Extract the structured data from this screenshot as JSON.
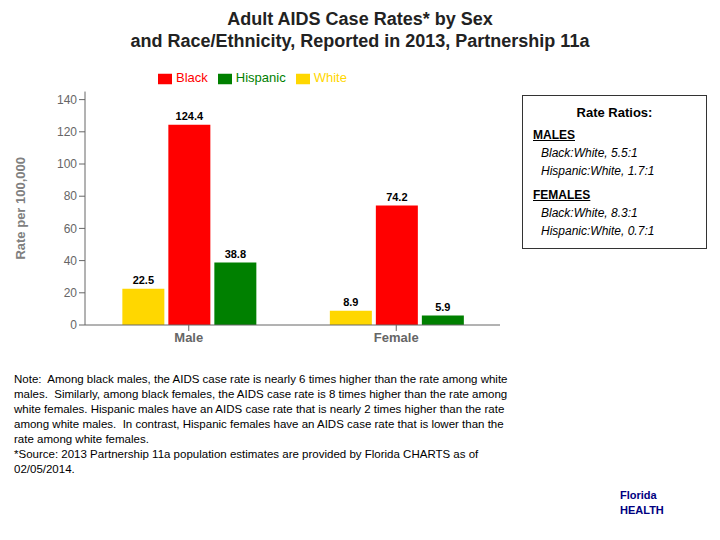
{
  "chart_data": {
    "type": "bar",
    "title": "Adult AIDS Case Rates* by Sex\nand Race/Ethnicity, Reported in 2013, Partnership 11a",
    "ylabel": "Rate per 100,000",
    "categories": [
      "Male",
      "Female"
    ],
    "series": [
      {
        "name": "White",
        "color": "#FFD700",
        "values": [
          22.5,
          8.9
        ]
      },
      {
        "name": "Black",
        "color": "#FF0000",
        "values": [
          124.4,
          74.2
        ]
      },
      {
        "name": "Hispanic",
        "color": "#008000",
        "values": [
          38.8,
          5.9
        ]
      }
    ],
    "ylim": [
      0,
      145
    ],
    "yticks": [
      0,
      20,
      40,
      60,
      80,
      100,
      120,
      140
    ],
    "grid": false,
    "legend": "top",
    "data_labels": true,
    "annotations": [
      "Rate Ratios:",
      "MALES",
      "Black:White, 5.5:1",
      "Hispanic:White, 1.7:1",
      "FEMALES",
      "Black:White, 8.3:1",
      "Hispanic:White, 0.7:1",
      "Note:  Among black males, the AIDS case rate is nearly 6 times higher than the rate among white\nmales.  Similarly, among black females, the AIDS case rate is 8 times higher than the rate among\nwhite females. Hispanic males have an AIDS case rate that is nearly 2 times higher than the rate\namong white males.  In contrast, Hispanic females have an AIDS case rate that is lower than the\nrate among white females.\n*Source: 2013 Partnership 11a population estimates are provided by Florida CHARTS as of\n02/05/2014.",
      "Florida",
      "HEALTH"
    ]
  }
}
